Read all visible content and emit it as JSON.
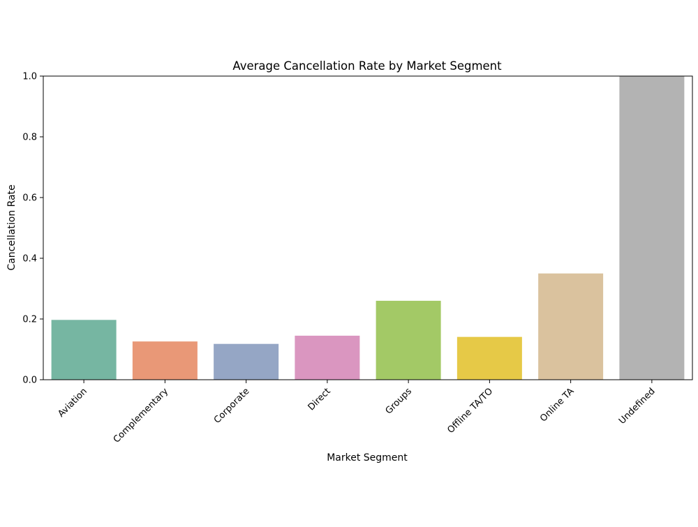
{
  "chart_data": {
    "type": "bar",
    "title": "Average Cancellation Rate by Market Segment",
    "xlabel": "Market Segment",
    "ylabel": "Cancellation Rate",
    "categories": [
      "Aviation",
      "Complementary",
      "Corporate",
      "Direct",
      "Groups",
      "Offline TA/TO",
      "Online TA",
      "Undefined"
    ],
    "values": [
      0.197,
      0.126,
      0.118,
      0.145,
      0.26,
      0.141,
      0.35,
      1.0
    ],
    "colors": [
      "#76b6a2",
      "#e99877",
      "#95a6c5",
      "#da96c0",
      "#a3c966",
      "#e6c947",
      "#dac29e",
      "#b3b3b3"
    ],
    "ylim": [
      0,
      1.0
    ],
    "yticks": [
      "0.0",
      "0.2",
      "0.4",
      "0.6",
      "0.8",
      "1.0"
    ],
    "grid": false,
    "legend": false
  }
}
